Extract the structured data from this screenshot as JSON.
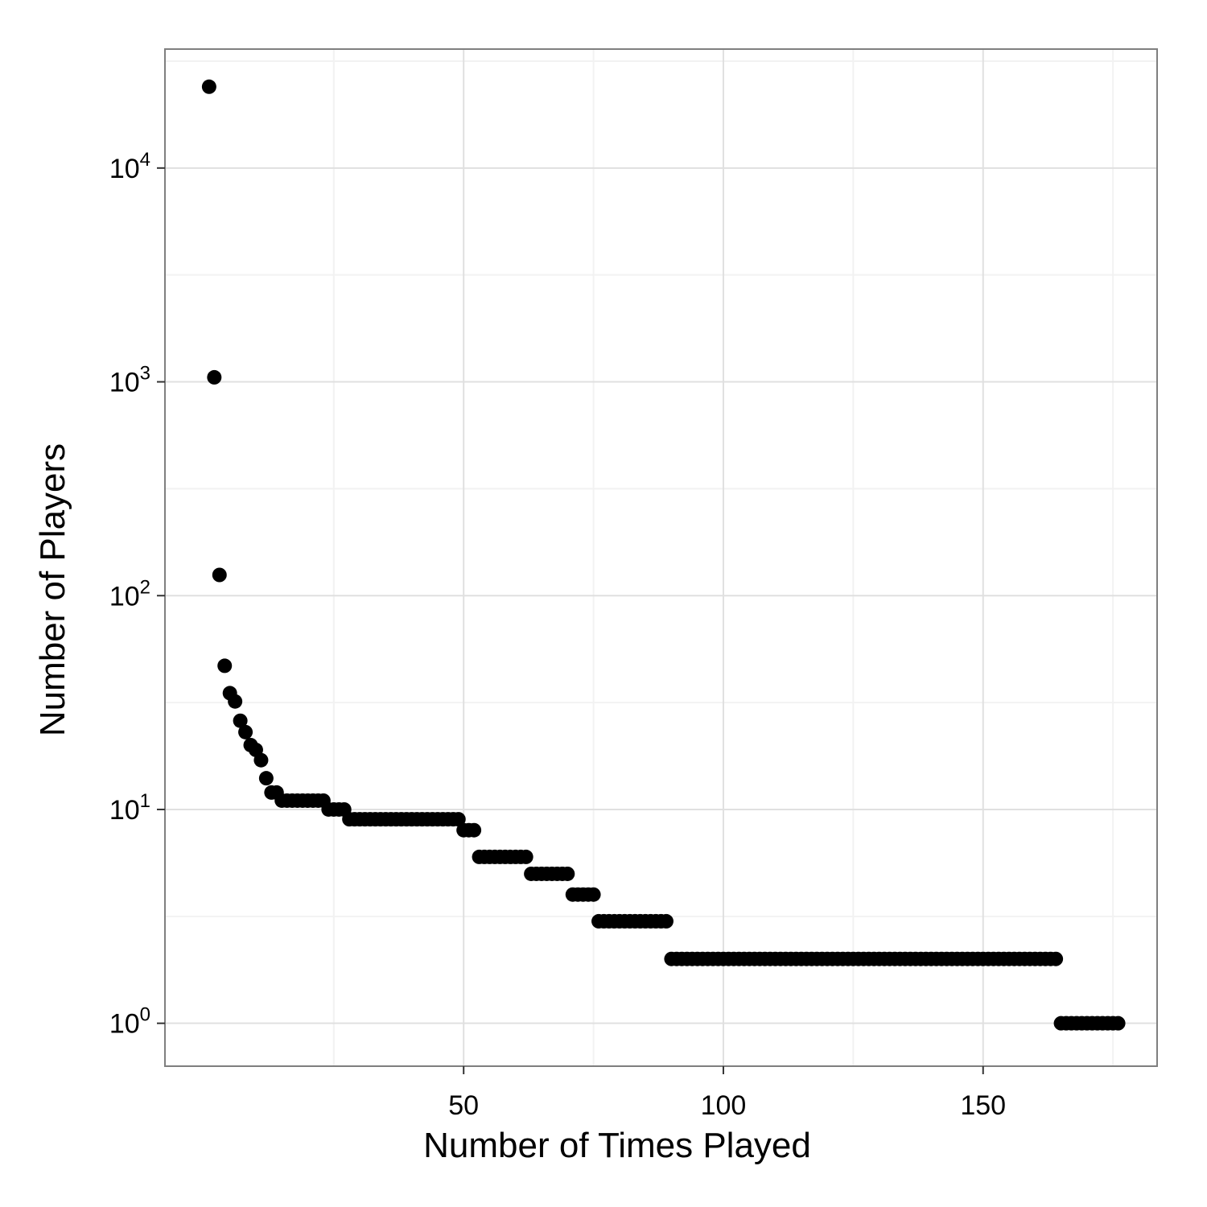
{
  "chart_data": {
    "type": "scatter",
    "title": "",
    "xlabel": "Number of Times Played",
    "ylabel": "Number of Players",
    "y_scale": "log10",
    "xlim": [
      -7.5,
      183.5
    ],
    "ylim": [
      0.63,
      36000
    ],
    "grid": true,
    "legend": "none",
    "x_ticks": [
      {
        "value": 50,
        "label": "50"
      },
      {
        "value": 100,
        "label": "100"
      },
      {
        "value": 150,
        "label": "150"
      }
    ],
    "y_ticks": [
      {
        "value": 1,
        "base": "10",
        "exp": "0"
      },
      {
        "value": 10,
        "base": "10",
        "exp": "1"
      },
      {
        "value": 100,
        "base": "10",
        "exp": "2"
      },
      {
        "value": 1000,
        "base": "10",
        "exp": "3"
      },
      {
        "value": 10000,
        "base": "10",
        "exp": "4"
      }
    ],
    "colors": {
      "point": "#000000",
      "grid_major": "#e0e0e0",
      "grid_minor": "#f2f2f2",
      "panel_border": "#7f7f7f"
    },
    "series": [
      {
        "points": [
          [
            1,
            24000
          ],
          [
            2,
            1050
          ],
          [
            3,
            125
          ],
          [
            4,
            47
          ],
          [
            5,
            35
          ],
          [
            6,
            32
          ],
          [
            7,
            26
          ],
          [
            8,
            23
          ],
          [
            9,
            20
          ],
          [
            10,
            19
          ],
          [
            11,
            17
          ],
          [
            12,
            14
          ],
          [
            13,
            12
          ],
          [
            14,
            12
          ],
          [
            15,
            11
          ],
          [
            16,
            11
          ],
          [
            17,
            11
          ],
          [
            18,
            11
          ],
          [
            19,
            11
          ],
          [
            20,
            11
          ],
          [
            21,
            11
          ],
          [
            22,
            11
          ],
          [
            23,
            11
          ],
          [
            24,
            10
          ],
          [
            25,
            10
          ],
          [
            26,
            10
          ],
          [
            27,
            10
          ],
          [
            28,
            9
          ],
          [
            29,
            9
          ],
          [
            30,
            9
          ],
          [
            31,
            9
          ],
          [
            32,
            9
          ],
          [
            33,
            9
          ],
          [
            34,
            9
          ],
          [
            35,
            9
          ],
          [
            36,
            9
          ],
          [
            37,
            9
          ],
          [
            38,
            9
          ],
          [
            39,
            9
          ],
          [
            40,
            9
          ],
          [
            41,
            9
          ],
          [
            42,
            9
          ],
          [
            43,
            9
          ],
          [
            44,
            9
          ],
          [
            45,
            9
          ],
          [
            46,
            9
          ],
          [
            47,
            9
          ],
          [
            48,
            9
          ],
          [
            49,
            9
          ],
          [
            50,
            8
          ],
          [
            51,
            8
          ],
          [
            52,
            8
          ],
          [
            53,
            6
          ],
          [
            54,
            6
          ],
          [
            55,
            6
          ],
          [
            56,
            6
          ],
          [
            57,
            6
          ],
          [
            58,
            6
          ],
          [
            59,
            6
          ],
          [
            60,
            6
          ],
          [
            61,
            6
          ],
          [
            62,
            6
          ],
          [
            63,
            5
          ],
          [
            64,
            5
          ],
          [
            65,
            5
          ],
          [
            66,
            5
          ],
          [
            67,
            5
          ],
          [
            68,
            5
          ],
          [
            69,
            5
          ],
          [
            70,
            5
          ],
          [
            71,
            4
          ],
          [
            72,
            4
          ],
          [
            73,
            4
          ],
          [
            74,
            4
          ],
          [
            75,
            4
          ],
          [
            76,
            3
          ],
          [
            77,
            3
          ],
          [
            78,
            3
          ],
          [
            79,
            3
          ],
          [
            80,
            3
          ],
          [
            81,
            3
          ],
          [
            82,
            3
          ],
          [
            83,
            3
          ],
          [
            84,
            3
          ],
          [
            85,
            3
          ],
          [
            86,
            3
          ],
          [
            87,
            3
          ],
          [
            88,
            3
          ],
          [
            89,
            3
          ],
          [
            90,
            2
          ],
          [
            91,
            2
          ],
          [
            92,
            2
          ],
          [
            93,
            2
          ],
          [
            94,
            2
          ],
          [
            95,
            2
          ],
          [
            96,
            2
          ],
          [
            97,
            2
          ],
          [
            98,
            2
          ],
          [
            99,
            2
          ],
          [
            100,
            2
          ],
          [
            101,
            2
          ],
          [
            102,
            2
          ],
          [
            103,
            2
          ],
          [
            104,
            2
          ],
          [
            105,
            2
          ],
          [
            106,
            2
          ],
          [
            107,
            2
          ],
          [
            108,
            2
          ],
          [
            109,
            2
          ],
          [
            110,
            2
          ],
          [
            111,
            2
          ],
          [
            112,
            2
          ],
          [
            113,
            2
          ],
          [
            114,
            2
          ],
          [
            115,
            2
          ],
          [
            116,
            2
          ],
          [
            117,
            2
          ],
          [
            118,
            2
          ],
          [
            119,
            2
          ],
          [
            120,
            2
          ],
          [
            121,
            2
          ],
          [
            122,
            2
          ],
          [
            123,
            2
          ],
          [
            124,
            2
          ],
          [
            125,
            2
          ],
          [
            126,
            2
          ],
          [
            127,
            2
          ],
          [
            128,
            2
          ],
          [
            129,
            2
          ],
          [
            130,
            2
          ],
          [
            131,
            2
          ],
          [
            132,
            2
          ],
          [
            133,
            2
          ],
          [
            134,
            2
          ],
          [
            135,
            2
          ],
          [
            136,
            2
          ],
          [
            137,
            2
          ],
          [
            138,
            2
          ],
          [
            139,
            2
          ],
          [
            140,
            2
          ],
          [
            141,
            2
          ],
          [
            142,
            2
          ],
          [
            143,
            2
          ],
          [
            144,
            2
          ],
          [
            145,
            2
          ],
          [
            146,
            2
          ],
          [
            147,
            2
          ],
          [
            148,
            2
          ],
          [
            149,
            2
          ],
          [
            150,
            2
          ],
          [
            151,
            2
          ],
          [
            152,
            2
          ],
          [
            153,
            2
          ],
          [
            154,
            2
          ],
          [
            155,
            2
          ],
          [
            156,
            2
          ],
          [
            157,
            2
          ],
          [
            158,
            2
          ],
          [
            159,
            2
          ],
          [
            160,
            2
          ],
          [
            161,
            2
          ],
          [
            162,
            2
          ],
          [
            163,
            2
          ],
          [
            164,
            2
          ],
          [
            165,
            1
          ],
          [
            166,
            1
          ],
          [
            167,
            1
          ],
          [
            168,
            1
          ],
          [
            169,
            1
          ],
          [
            170,
            1
          ],
          [
            171,
            1
          ],
          [
            172,
            1
          ],
          [
            173,
            1
          ],
          [
            174,
            1
          ],
          [
            175,
            1
          ],
          [
            176,
            1
          ]
        ]
      }
    ]
  }
}
